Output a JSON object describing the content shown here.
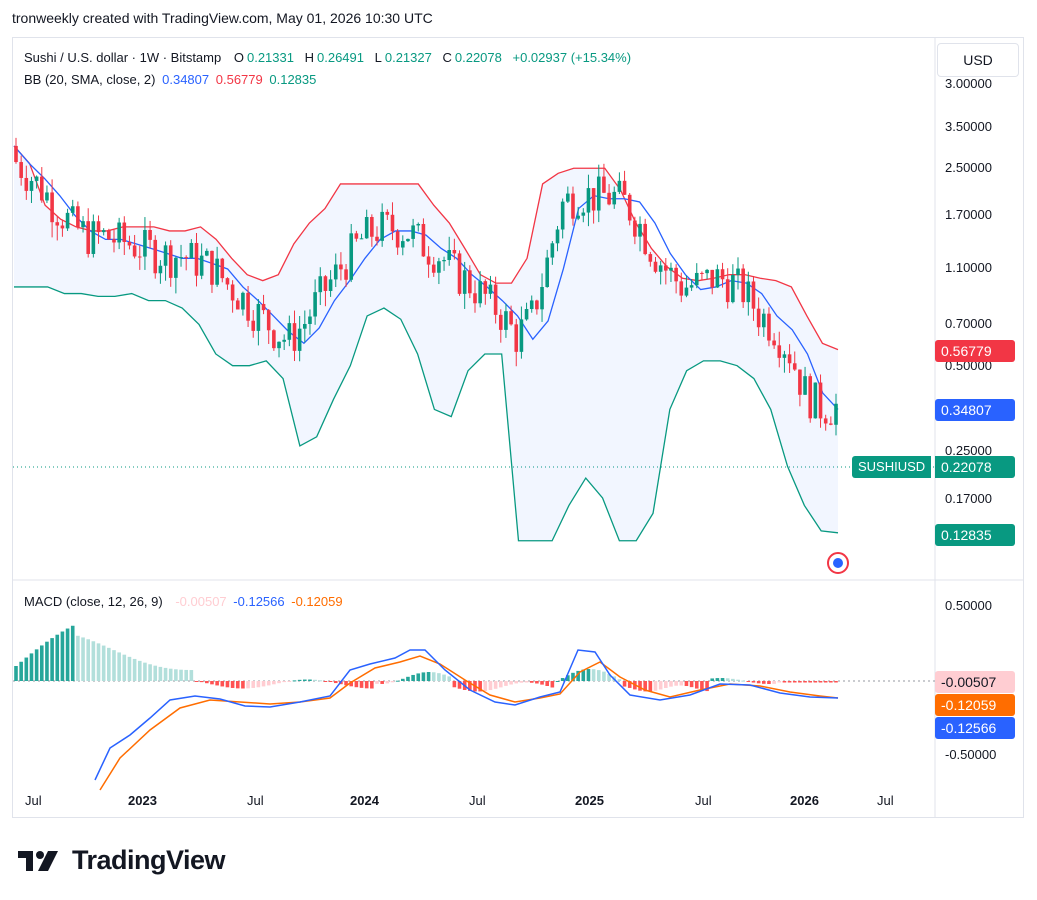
{
  "caption": "tronweekly created with TradingView.com, May 01, 2026 10:30 UTC",
  "currency_button": "USD",
  "header": {
    "symbol_title": "Sushi / U.S. dollar · 1W · Bitstamp",
    "o_label": "O",
    "o_value": "0.21331",
    "h_label": "H",
    "h_value": "0.26491",
    "l_label": "L",
    "l_value": "0.21327",
    "c_label": "C",
    "c_value": "0.22078",
    "change": "+0.02937 (+15.34%)"
  },
  "bb_legend": {
    "title": "BB (20, SMA, close, 2)",
    "basis": "0.34807",
    "upper": "0.56779",
    "lower": "0.12835"
  },
  "macd_legend": {
    "title": "MACD (close, 12, 26, 9)",
    "hist": "-0.00507",
    "macd": "-0.12566",
    "signal": "-0.12059"
  },
  "price_axis_labels": [
    "3.00000",
    "3.50000",
    "2.50000",
    "1.70000",
    "1.10000",
    "0.70000",
    "0.50000",
    "0.25000",
    "0.17000",
    "0.12835"
  ],
  "current_labels": {
    "upper": "0.56779",
    "basis": "0.34807",
    "symbol": "SUSHIUSD",
    "close": "0.22078",
    "lower": "0.12835"
  },
  "macd_axis_labels": [
    "0.50000",
    "-0.50000"
  ],
  "macd_current_labels": {
    "hist": "-0.00507",
    "signal": "-0.12059",
    "macd": "-0.12566"
  },
  "time_axis_labels": [
    "Jul",
    "2023",
    "Jul",
    "2024",
    "Jul",
    "2025",
    "Jul",
    "2026",
    "Jul"
  ],
  "colors": {
    "up": "#089981",
    "down": "#f23645",
    "bb_basis": "#2962ff",
    "bb_upper": "#f23645",
    "bb_lower": "#089981",
    "bb_fill": "#2962ff",
    "macd_line": "#2962ff",
    "signal_line": "#ff6d00",
    "hist_up_strong": "#26a69a",
    "hist_up_weak": "#b2dfdb",
    "hist_down_strong": "#ff5252",
    "hist_down_weak": "#ffcdd2",
    "hist_label_bg": "#ffcdd2",
    "symbol_label_bg": "#089981",
    "bb_upper_label_bg": "#f23645",
    "bb_basis_label_bg": "#2962ff",
    "bb_lower_label_bg": "#089981",
    "signal_label_bg": "#ff6d00",
    "macd_label_bg": "#2962ff"
  },
  "brand": "TradingView",
  "chart_data": {
    "type": "candlestick",
    "title": "Sushi / U.S. dollar · 1W · Bitstamp",
    "y_scale": "log",
    "ylim": [
      0.12,
      3.0
    ],
    "x_ticks": [
      "Jul",
      "2023",
      "Jul",
      "2024",
      "Jul",
      "2025",
      "Jul",
      "2026",
      "Jul"
    ],
    "series": [
      {
        "name": "SUSHIUSD",
        "type": "candlestick",
        "last": 0.22078
      },
      {
        "name": "BB basis",
        "type": "line",
        "last": 0.34807,
        "values": [
          3.0,
          2.6,
          2.3,
          2.0,
          1.7,
          1.5,
          1.4,
          1.4,
          1.35,
          1.3,
          1.25,
          1.2,
          1.2,
          1.15,
          1.1,
          0.95,
          0.85,
          0.75,
          0.66,
          0.6,
          0.68,
          0.85,
          1.0,
          1.2,
          1.4,
          1.5,
          1.5,
          1.45,
          1.3,
          1.2,
          1.05,
          0.95,
          0.85,
          0.75,
          0.62,
          0.72,
          1.1,
          1.8,
          2.0,
          1.95,
          1.95,
          1.9,
          1.6,
          1.25,
          1.05,
          0.93,
          0.95,
          1.0,
          0.98,
          0.9,
          0.75,
          0.67,
          0.55,
          0.4,
          0.35
        ]
      },
      {
        "name": "BB upper",
        "type": "line",
        "last": 0.56779,
        "values": [
          3.0,
          2.6,
          1.85,
          1.65,
          1.55,
          1.5,
          1.5,
          1.55,
          1.55,
          1.55,
          1.5,
          1.5,
          1.55,
          1.4,
          1.2,
          1.05,
          1.0,
          1.05,
          1.35,
          1.6,
          1.8,
          2.2,
          2.2,
          2.2,
          2.2,
          2.2,
          2.2,
          1.85,
          1.6,
          1.3,
          1.05,
          0.98,
          0.98,
          1.2,
          2.2,
          2.4,
          2.5,
          2.5,
          2.5,
          2.1,
          1.6,
          1.3,
          1.12,
          1.02,
          1.0,
          1.02,
          1.05,
          1.05,
          1.02,
          1.0,
          0.95,
          0.75,
          0.6,
          0.57
        ]
      },
      {
        "name": "BB lower",
        "type": "line",
        "last": 0.12835,
        "values": [
          0.95,
          0.95,
          0.95,
          0.9,
          0.9,
          0.88,
          0.88,
          0.9,
          0.85,
          0.85,
          0.8,
          0.7,
          0.55,
          0.5,
          0.5,
          0.52,
          0.45,
          0.26,
          0.28,
          0.38,
          0.5,
          0.75,
          0.8,
          0.73,
          0.55,
          0.35,
          0.33,
          0.48,
          0.55,
          0.55,
          0.12,
          0.12,
          0.12,
          0.16,
          0.2,
          0.17,
          0.12,
          0.12,
          0.15,
          0.35,
          0.48,
          0.52,
          0.52,
          0.5,
          0.45,
          0.35,
          0.22,
          0.16,
          0.13,
          0.128
        ]
      }
    ],
    "macd": {
      "name": "MACD (close, 12, 26, 9)",
      "ylim": [
        -0.6,
        0.6
      ],
      "histogram_last": -0.00507,
      "macd_last": -0.12566,
      "signal_last": -0.12059
    }
  }
}
